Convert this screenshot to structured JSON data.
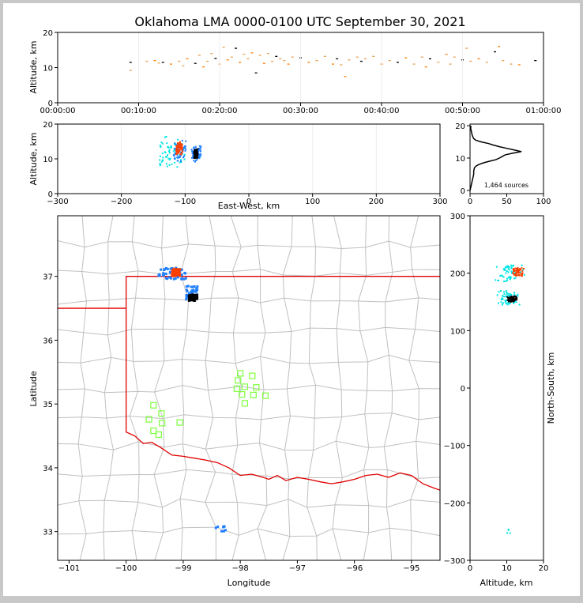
{
  "title": "Oklahoma LMA 0000-0100 UTC September 30, 2021",
  "colors": {
    "background": "#ffffff",
    "frame": "#c8c8c8",
    "state_border": "#e00000",
    "county_border": "#c0c0c0",
    "station": "#7fff3f",
    "source_colors": [
      "#00e5e5",
      "#1f7fff",
      "#7f3fff",
      "#ff3f00",
      "#000000",
      "#ff7f00",
      "#e5a050"
    ]
  },
  "chart_data": [
    {
      "id": "time_altitude",
      "type": "scatter",
      "ylabel": "Altitude, km",
      "xlim": [
        "00:00:00",
        "01:00:00"
      ],
      "ylim": [
        0,
        20
      ],
      "x_ticks": [
        "00:00:00",
        "00:10:00",
        "00:20:00",
        "00:30:00",
        "00:40:00",
        "00:50:00",
        "01:00:00"
      ],
      "y_ticks": [
        0,
        10,
        20
      ],
      "points_minutes_alt": [
        [
          9,
          11.5
        ],
        [
          9,
          9.2
        ],
        [
          11,
          11.8
        ],
        [
          12,
          12.0
        ],
        [
          12.5,
          11.3
        ],
        [
          13,
          11.5
        ],
        [
          14,
          11.0
        ],
        [
          15,
          11.8
        ],
        [
          15.5,
          10.5
        ],
        [
          16,
          12.5
        ],
        [
          17,
          11.2
        ],
        [
          17.5,
          13.5
        ],
        [
          18,
          10.2
        ],
        [
          18.5,
          11.8
        ],
        [
          19,
          14.0
        ],
        [
          19.5,
          12.6
        ],
        [
          20,
          11.0
        ],
        [
          20.5,
          15.8
        ],
        [
          21,
          12.2
        ],
        [
          21.5,
          13.0
        ],
        [
          22,
          15.5
        ],
        [
          22.5,
          11.5
        ],
        [
          23,
          13.8
        ],
        [
          23.5,
          12.5
        ],
        [
          24,
          14.2
        ],
        [
          24.5,
          8.5
        ],
        [
          25,
          13.5
        ],
        [
          25.5,
          11.2
        ],
        [
          26,
          14.0
        ],
        [
          26.5,
          11.8
        ],
        [
          27,
          13.2
        ],
        [
          27.5,
          12.5
        ],
        [
          28,
          12.0
        ],
        [
          28.5,
          11.0
        ],
        [
          29,
          13.0
        ],
        [
          30,
          12.8
        ],
        [
          31,
          11.5
        ],
        [
          32,
          12.0
        ],
        [
          33,
          13.2
        ],
        [
          34,
          11.0
        ],
        [
          34.5,
          12.5
        ],
        [
          35,
          10.8
        ],
        [
          35.5,
          7.5
        ],
        [
          36,
          12.2
        ],
        [
          37,
          13.0
        ],
        [
          37.5,
          11.8
        ],
        [
          38,
          12.5
        ],
        [
          39,
          13.2
        ],
        [
          40,
          11.0
        ],
        [
          41,
          12.0
        ],
        [
          42,
          11.5
        ],
        [
          43,
          12.8
        ],
        [
          44,
          11.0
        ],
        [
          45,
          13.0
        ],
        [
          45.5,
          10.2
        ],
        [
          46,
          12.5
        ],
        [
          47,
          11.5
        ],
        [
          48,
          13.8
        ],
        [
          48.5,
          11.0
        ],
        [
          49,
          13.0
        ],
        [
          50,
          12.2
        ],
        [
          50.5,
          15.5
        ],
        [
          51,
          11.8
        ],
        [
          52,
          12.5
        ],
        [
          53,
          11.5
        ],
        [
          54,
          14.5
        ],
        [
          54.5,
          16.0
        ],
        [
          55,
          12.0
        ],
        [
          56,
          11.0
        ],
        [
          57,
          10.8
        ],
        [
          59,
          12.0
        ]
      ]
    },
    {
      "id": "ew_altitude",
      "type": "scatter",
      "xlabel": "East-West, km",
      "ylabel": "Altitude, km",
      "xlim": [
        -300,
        300
      ],
      "ylim": [
        0,
        20
      ],
      "x_ticks": [
        -300,
        -200,
        -100,
        0,
        100,
        200,
        300
      ],
      "y_ticks": [
        0,
        10,
        20
      ],
      "clusters": [
        {
          "x": [
            -140,
            -100
          ],
          "alt": [
            6,
            17
          ],
          "color": "#00e5e5"
        },
        {
          "x": [
            -118,
            -98
          ],
          "alt": [
            9,
            16
          ],
          "color": "#1f7fff"
        },
        {
          "x": [
            -114,
            -104
          ],
          "alt": [
            11,
            15
          ],
          "color": "#ff3f00"
        },
        {
          "x": [
            -90,
            -75
          ],
          "alt": [
            9,
            14
          ],
          "color": "#1f7fff"
        },
        {
          "x": [
            -86,
            -80
          ],
          "alt": [
            10,
            13
          ],
          "color": "#000000"
        }
      ]
    },
    {
      "id": "altitude_histogram",
      "type": "line",
      "xlim": [
        0,
        100
      ],
      "ylim": [
        0,
        20
      ],
      "x_ticks": [
        0,
        50,
        100
      ],
      "y_ticks": [
        0,
        10,
        20
      ],
      "annotation": "1,464 sources",
      "profile": [
        [
          0,
          0
        ],
        [
          1,
          1
        ],
        [
          2,
          2
        ],
        [
          3,
          3
        ],
        [
          4,
          4
        ],
        [
          5,
          5
        ],
        [
          5,
          6
        ],
        [
          6,
          7
        ],
        [
          8,
          7.5
        ],
        [
          12,
          8
        ],
        [
          18,
          8.5
        ],
        [
          26,
          9
        ],
        [
          35,
          9.5
        ],
        [
          40,
          10
        ],
        [
          44,
          10.5
        ],
        [
          48,
          11
        ],
        [
          58,
          11.5
        ],
        [
          70,
          12
        ],
        [
          60,
          12.5
        ],
        [
          50,
          13
        ],
        [
          40,
          13.5
        ],
        [
          32,
          14
        ],
        [
          25,
          14.5
        ],
        [
          15,
          15
        ],
        [
          8,
          15.5
        ],
        [
          5,
          16
        ],
        [
          3,
          17
        ],
        [
          2,
          18
        ],
        [
          1,
          19
        ],
        [
          1,
          20
        ]
      ]
    },
    {
      "id": "plan_view",
      "type": "scatter",
      "xlabel": "Longitude",
      "ylabel": "Latitude",
      "xlim": [
        -101.2,
        -94.5
      ],
      "ylim": [
        32.55,
        37.95
      ],
      "x_ticks": [
        -101,
        -100,
        -99,
        -98,
        -97,
        -96,
        -95
      ],
      "y_ticks": [
        33,
        34,
        35,
        36,
        37
      ],
      "stations": [
        [
          -99.52,
          34.98
        ],
        [
          -99.38,
          34.85
        ],
        [
          -99.6,
          34.76
        ],
        [
          -99.37,
          34.7
        ],
        [
          -99.06,
          34.71
        ],
        [
          -99.52,
          34.58
        ],
        [
          -99.43,
          34.52
        ],
        [
          -98.0,
          35.48
        ],
        [
          -98.04,
          35.37
        ],
        [
          -98.06,
          35.24
        ],
        [
          -97.92,
          35.27
        ],
        [
          -97.79,
          35.44
        ],
        [
          -97.72,
          35.26
        ],
        [
          -97.97,
          35.15
        ],
        [
          -97.77,
          35.14
        ],
        [
          -97.56,
          35.13
        ],
        [
          -97.92,
          35.01
        ]
      ],
      "clusters": [
        {
          "lon": [
            -99.45,
            -98.95
          ],
          "lat": [
            36.95,
            37.15
          ],
          "color": "#1f7fff"
        },
        {
          "lon": [
            -99.2,
            -99.05
          ],
          "lat": [
            37.0,
            37.12
          ],
          "color": "#ff3f00"
        },
        {
          "lon": [
            -98.95,
            -98.75
          ],
          "lat": [
            36.62,
            36.85
          ],
          "color": "#1f7fff"
        },
        {
          "lon": [
            -98.9,
            -98.75
          ],
          "lat": [
            36.62,
            36.72
          ],
          "color": "#000000"
        },
        {
          "lon": [
            -98.45,
            -98.25
          ],
          "lat": [
            33.0,
            33.1
          ],
          "color": "#1f7fff"
        }
      ]
    },
    {
      "id": "altitude_ns",
      "type": "scatter",
      "xlabel": "Altitude, km",
      "ylabel": "North-South, km",
      "xlim": [
        0,
        20
      ],
      "ylim": [
        -300,
        300
      ],
      "x_ticks": [
        0,
        10,
        20
      ],
      "y_ticks": [
        -300,
        -200,
        -100,
        0,
        100,
        200,
        300
      ],
      "clusters": [
        {
          "alt": [
            6,
            16
          ],
          "ns": [
            185,
            215
          ],
          "color": "#00e5e5"
        },
        {
          "alt": [
            11,
            15
          ],
          "ns": [
            195,
            210
          ],
          "color": "#ff3f00"
        },
        {
          "alt": [
            7,
            14
          ],
          "ns": [
            145,
            170
          ],
          "color": "#00e5e5"
        },
        {
          "alt": [
            10,
            13
          ],
          "ns": [
            150,
            160
          ],
          "color": "#000000"
        },
        {
          "alt": [
            10,
            11
          ],
          "ns": [
            -255,
            -245
          ],
          "color": "#00e5e5"
        }
      ]
    }
  ]
}
